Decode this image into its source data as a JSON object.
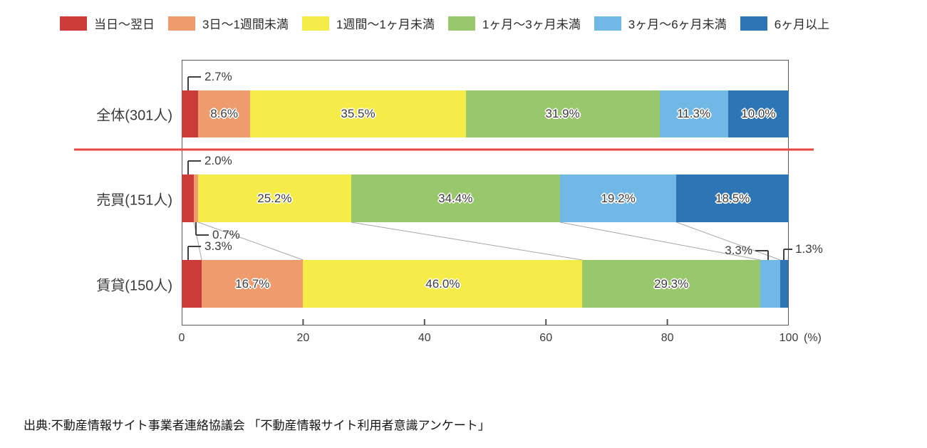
{
  "legend": {
    "items": [
      {
        "label": "当日～翌日",
        "color": "#cc3d39"
      },
      {
        "label": "3日～1週間未満",
        "color": "#ee9b6d"
      },
      {
        "label": "1週間～1ヶ月未満",
        "color": "#f6ec49"
      },
      {
        "label": "1ヶ月～3ヶ月未満",
        "color": "#99c76c"
      },
      {
        "label": "3ヶ月～6ヶ月未満",
        "color": "#72b8e6"
      },
      {
        "label": "6ヶ月以上",
        "color": "#2e75b6"
      }
    ]
  },
  "chart_data": {
    "type": "bar",
    "orientation": "horizontal",
    "stacked": true,
    "categories": [
      "全体(301人)",
      "売買(151人)",
      "賃貸(150人)"
    ],
    "series": [
      {
        "name": "当日～翌日",
        "color": "#cc3d39",
        "values": [
          2.7,
          2.0,
          3.3
        ]
      },
      {
        "name": "3日～1週間未満",
        "color": "#ee9b6d",
        "values": [
          8.6,
          0.7,
          16.7
        ]
      },
      {
        "name": "1週間～1ヶ月未満",
        "color": "#f6ec49",
        "values": [
          35.5,
          25.2,
          46.0
        ]
      },
      {
        "name": "1ヶ月～3ヶ月未満",
        "color": "#99c76c",
        "values": [
          31.9,
          34.4,
          29.3
        ]
      },
      {
        "name": "3ヶ月～6ヶ月未満",
        "color": "#72b8e6",
        "values": [
          11.3,
          19.2,
          3.3
        ]
      },
      {
        "name": "6ヶ月以上",
        "color": "#2e75b6",
        "values": [
          10.0,
          18.5,
          1.3
        ]
      }
    ],
    "value_labels": [
      [
        "2.7%",
        "8.6%",
        "35.5%",
        "31.9%",
        "11.3%",
        "10.0%"
      ],
      [
        "2.0%",
        "0.7%",
        "25.2%",
        "34.4%",
        "19.2%",
        "18.5%"
      ],
      [
        "3.3%",
        "16.7%",
        "46.0%",
        "29.3%",
        "3.3%",
        "1.3%"
      ]
    ],
    "x_ticks": [
      "0",
      "20",
      "40",
      "60",
      "80",
      "100"
    ],
    "x_unit": "(%)",
    "xlim": [
      0,
      100
    ],
    "grid": false,
    "legend_position": "top",
    "separator_color": "#e8473d",
    "connector_color": "#a6a6a6"
  },
  "source": {
    "text": "出典:不動産情報サイト事業者連絡協議会 「不動産情報サイト利用者意識アンケート」"
  }
}
